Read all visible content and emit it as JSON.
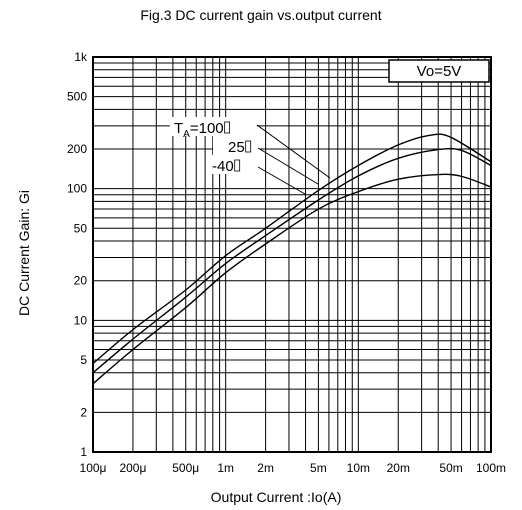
{
  "chart_data": {
    "type": "line",
    "title": "Fig.3 DC current gain vs.output current",
    "xlabel": "Output Current :Io(A)",
    "ylabel": "DC Current Gain: Gi",
    "x_scale": "log",
    "y_scale": "log",
    "xlim": [
      0.0001,
      0.1
    ],
    "ylim": [
      1,
      1000
    ],
    "grid": true,
    "x_ticks": [
      {
        "value": 0.0001,
        "label": "100μ"
      },
      {
        "value": 0.0002,
        "label": "200μ"
      },
      {
        "value": 0.0005,
        "label": "500μ"
      },
      {
        "value": 0.001,
        "label": "1m"
      },
      {
        "value": 0.002,
        "label": "2m"
      },
      {
        "value": 0.005,
        "label": "5m"
      },
      {
        "value": 0.01,
        "label": "10m"
      },
      {
        "value": 0.02,
        "label": "20m"
      },
      {
        "value": 0.05,
        "label": "50m"
      },
      {
        "value": 0.1,
        "label": "100m"
      }
    ],
    "y_ticks": [
      {
        "value": 1000,
        "label": "1k"
      },
      {
        "value": 500,
        "label": "500"
      },
      {
        "value": 200,
        "label": "200"
      },
      {
        "value": 100,
        "label": "100"
      },
      {
        "value": 50,
        "label": "50"
      },
      {
        "value": 20,
        "label": "20"
      },
      {
        "value": 10,
        "label": "10"
      },
      {
        "value": 5,
        "label": "5"
      },
      {
        "value": 2,
        "label": "2"
      },
      {
        "value": 1,
        "label": "1"
      }
    ],
    "condition_box": "Vo=5V",
    "series": [
      {
        "name": "TA=100",
        "label_main": "T",
        "label_sub": "A",
        "label_rest": "=100",
        "points": [
          [
            0.0001,
            4.7
          ],
          [
            0.0002,
            8.5
          ],
          [
            0.0005,
            17
          ],
          [
            0.001,
            31
          ],
          [
            0.002,
            50
          ],
          [
            0.005,
            97
          ],
          [
            0.01,
            150
          ],
          [
            0.02,
            215
          ],
          [
            0.035,
            255
          ],
          [
            0.05,
            245
          ],
          [
            0.1,
            160
          ]
        ]
      },
      {
        "name": "25",
        "label_main": "25",
        "points": [
          [
            0.0001,
            4.0
          ],
          [
            0.0002,
            7.2
          ],
          [
            0.0005,
            15
          ],
          [
            0.001,
            27
          ],
          [
            0.002,
            44
          ],
          [
            0.005,
            82
          ],
          [
            0.01,
            125
          ],
          [
            0.02,
            170
          ],
          [
            0.04,
            198
          ],
          [
            0.06,
            195
          ],
          [
            0.1,
            150
          ]
        ]
      },
      {
        "name": "-40",
        "label_main": "-40",
        "points": [
          [
            0.0001,
            3.3
          ],
          [
            0.0002,
            6.0
          ],
          [
            0.0005,
            12.5
          ],
          [
            0.001,
            23
          ],
          [
            0.002,
            38
          ],
          [
            0.005,
            70
          ],
          [
            0.01,
            95
          ],
          [
            0.02,
            118
          ],
          [
            0.04,
            128
          ],
          [
            0.06,
            124
          ],
          [
            0.1,
            103
          ]
        ]
      }
    ]
  }
}
